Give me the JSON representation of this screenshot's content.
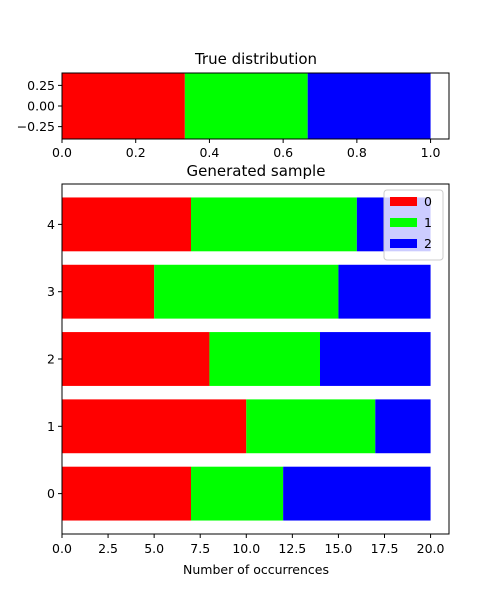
{
  "chart_data": [
    {
      "type": "bar",
      "orientation": "horizontal",
      "stacked": true,
      "title": "True distribution",
      "xlabel": "",
      "ylabel": "",
      "xlim": [
        0,
        1.05
      ],
      "ylim": [
        -0.4,
        0.4
      ],
      "xticks": [
        "0.0",
        "0.2",
        "0.4",
        "0.6",
        "0.8",
        "1.0"
      ],
      "yticks": [
        "0.25",
        "0.00",
        "−0.25"
      ],
      "series": [
        {
          "color": "#ff0000",
          "values": [
            0.3333
          ]
        },
        {
          "color": "#00ff00",
          "values": [
            0.3333
          ]
        },
        {
          "color": "#0000ff",
          "values": [
            0.3334
          ]
        }
      ],
      "grid": false,
      "legend": "none"
    },
    {
      "type": "bar",
      "orientation": "horizontal",
      "stacked": true,
      "title": "Generated sample",
      "xlabel": "Number of occurrences",
      "ylabel": "",
      "xlim": [
        0,
        21
      ],
      "categories": [
        "0",
        "1",
        "2",
        "3",
        "4"
      ],
      "xticks": [
        "0.0",
        "2.5",
        "5.0",
        "7.5",
        "10.0",
        "12.5",
        "15.0",
        "17.5",
        "20.0"
      ],
      "series": [
        {
          "name": "0",
          "color": "#ff0000",
          "values": [
            7,
            10,
            8,
            5,
            7
          ]
        },
        {
          "name": "1",
          "color": "#00ff00",
          "values": [
            5,
            7,
            6,
            10,
            9
          ]
        },
        {
          "name": "2",
          "color": "#0000ff",
          "values": [
            8,
            3,
            6,
            5,
            4
          ]
        }
      ],
      "grid": false,
      "legend": "top-right"
    }
  ]
}
